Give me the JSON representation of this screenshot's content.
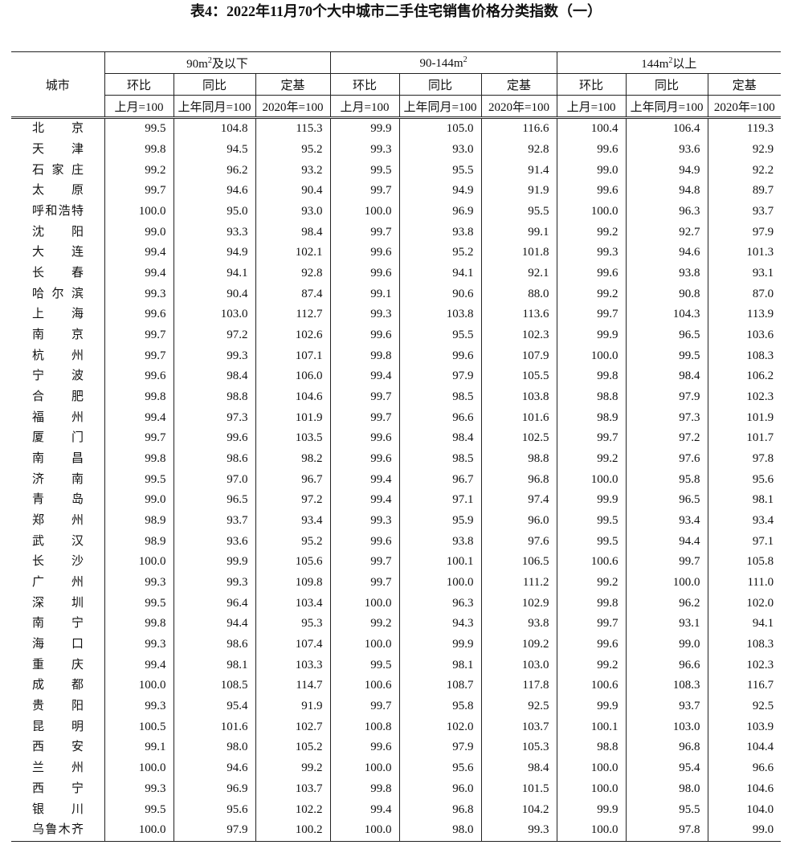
{
  "header": {
    "title": "表4：2022年11月70个大中城市二手住宅销售价格分类指数（一）"
  },
  "table": {
    "city_header": "城市",
    "groups": [
      {
        "label": {
          "pre": "90m",
          "sup": "2",
          "post": "及以下"
        },
        "columns": [
          {
            "name": "环比",
            "base": "上月=100"
          },
          {
            "name": "同比",
            "base": "上年同月=100"
          },
          {
            "name": "定基",
            "base": "2020年=100"
          }
        ]
      },
      {
        "label": {
          "pre": "90-144m",
          "sup": "2"
        },
        "columns": [
          {
            "name": "环比",
            "base": "上月=100"
          },
          {
            "name": "同比",
            "base": "上年同月=100"
          },
          {
            "name": "定基",
            "base": "2020年=100"
          }
        ]
      },
      {
        "label": {
          "pre": "144m",
          "sup": "2",
          "post": "以上"
        },
        "columns": [
          {
            "name": "环比",
            "base": "上月=100"
          },
          {
            "name": "同比",
            "base": "上年同月=100"
          },
          {
            "name": "定基",
            "base": "2020年=100"
          }
        ]
      }
    ],
    "rows": [
      [
        "北京",
        "99.5",
        "104.8",
        "115.3",
        "99.9",
        "105.0",
        "116.6",
        "100.4",
        "106.4",
        "119.3"
      ],
      [
        "天津",
        "99.8",
        "94.5",
        "95.2",
        "99.3",
        "93.0",
        "92.8",
        "99.6",
        "93.6",
        "92.9"
      ],
      [
        "石家庄",
        "99.2",
        "96.2",
        "93.2",
        "99.5",
        "95.5",
        "91.4",
        "99.0",
        "94.9",
        "92.2"
      ],
      [
        "太原",
        "99.7",
        "94.6",
        "90.4",
        "99.7",
        "94.9",
        "91.9",
        "99.6",
        "94.8",
        "89.7"
      ],
      [
        "呼和浩特",
        "100.0",
        "95.0",
        "93.0",
        "100.0",
        "96.9",
        "95.5",
        "100.0",
        "96.3",
        "93.7"
      ],
      [
        "沈阳",
        "99.0",
        "93.3",
        "98.4",
        "99.7",
        "93.8",
        "99.1",
        "99.2",
        "92.7",
        "97.9"
      ],
      [
        "大连",
        "99.4",
        "94.9",
        "102.1",
        "99.6",
        "95.2",
        "101.8",
        "99.3",
        "94.6",
        "101.3"
      ],
      [
        "长春",
        "99.4",
        "94.1",
        "92.8",
        "99.6",
        "94.1",
        "92.1",
        "99.6",
        "93.8",
        "93.1"
      ],
      [
        "哈尔滨",
        "99.3",
        "90.4",
        "87.4",
        "99.1",
        "90.6",
        "88.0",
        "99.2",
        "90.8",
        "87.0"
      ],
      [
        "上海",
        "99.6",
        "103.0",
        "112.7",
        "99.3",
        "103.8",
        "113.6",
        "99.7",
        "104.3",
        "113.9"
      ],
      [
        "南京",
        "99.7",
        "97.2",
        "102.6",
        "99.6",
        "95.5",
        "102.3",
        "99.9",
        "96.5",
        "103.6"
      ],
      [
        "杭州",
        "99.7",
        "99.3",
        "107.1",
        "99.8",
        "99.6",
        "107.9",
        "100.0",
        "99.5",
        "108.3"
      ],
      [
        "宁波",
        "99.6",
        "98.4",
        "106.0",
        "99.4",
        "97.9",
        "105.5",
        "99.8",
        "98.4",
        "106.2"
      ],
      [
        "合肥",
        "99.8",
        "98.8",
        "104.6",
        "99.7",
        "98.5",
        "103.8",
        "98.8",
        "97.9",
        "102.3"
      ],
      [
        "福州",
        "99.4",
        "97.3",
        "101.9",
        "99.7",
        "96.6",
        "101.6",
        "98.9",
        "97.3",
        "101.9"
      ],
      [
        "厦门",
        "99.7",
        "99.6",
        "103.5",
        "99.6",
        "98.4",
        "102.5",
        "99.7",
        "97.2",
        "101.7"
      ],
      [
        "南昌",
        "99.8",
        "98.6",
        "98.2",
        "99.6",
        "98.5",
        "98.8",
        "99.2",
        "97.6",
        "97.8"
      ],
      [
        "济南",
        "99.5",
        "97.0",
        "96.7",
        "99.4",
        "96.7",
        "96.8",
        "100.0",
        "95.8",
        "95.6"
      ],
      [
        "青岛",
        "99.0",
        "96.5",
        "97.2",
        "99.4",
        "97.1",
        "97.4",
        "99.9",
        "96.5",
        "98.1"
      ],
      [
        "郑州",
        "98.9",
        "93.7",
        "93.4",
        "99.3",
        "95.9",
        "96.0",
        "99.5",
        "93.4",
        "93.4"
      ],
      [
        "武汉",
        "98.9",
        "93.6",
        "95.2",
        "99.6",
        "93.8",
        "97.6",
        "99.5",
        "94.4",
        "97.1"
      ],
      [
        "长沙",
        "100.0",
        "99.9",
        "105.6",
        "99.7",
        "100.1",
        "106.5",
        "100.6",
        "99.7",
        "105.8"
      ],
      [
        "广州",
        "99.3",
        "99.3",
        "109.8",
        "99.7",
        "100.0",
        "111.2",
        "99.2",
        "100.0",
        "111.0"
      ],
      [
        "深圳",
        "99.5",
        "96.4",
        "103.4",
        "100.0",
        "96.3",
        "102.9",
        "99.8",
        "96.2",
        "102.0"
      ],
      [
        "南宁",
        "99.8",
        "94.4",
        "95.3",
        "99.2",
        "94.3",
        "93.8",
        "99.7",
        "93.1",
        "94.1"
      ],
      [
        "海口",
        "99.3",
        "98.6",
        "107.4",
        "100.0",
        "99.9",
        "109.2",
        "99.6",
        "99.0",
        "108.3"
      ],
      [
        "重庆",
        "99.4",
        "98.1",
        "103.3",
        "99.5",
        "98.1",
        "103.0",
        "99.2",
        "96.6",
        "102.3"
      ],
      [
        "成都",
        "100.0",
        "108.5",
        "114.7",
        "100.6",
        "108.7",
        "117.8",
        "100.6",
        "108.3",
        "116.7"
      ],
      [
        "贵阳",
        "99.3",
        "95.4",
        "91.9",
        "99.7",
        "95.8",
        "92.5",
        "99.9",
        "93.7",
        "92.5"
      ],
      [
        "昆明",
        "100.5",
        "101.6",
        "102.7",
        "100.8",
        "102.0",
        "103.7",
        "100.1",
        "103.0",
        "103.9"
      ],
      [
        "西安",
        "99.1",
        "98.0",
        "105.2",
        "99.6",
        "97.9",
        "105.3",
        "98.8",
        "96.8",
        "104.4"
      ],
      [
        "兰州",
        "100.0",
        "94.6",
        "99.2",
        "100.0",
        "95.6",
        "98.4",
        "100.0",
        "95.4",
        "96.6"
      ],
      [
        "西宁",
        "99.3",
        "96.9",
        "103.7",
        "99.8",
        "96.0",
        "101.5",
        "100.0",
        "98.0",
        "104.6"
      ],
      [
        "银川",
        "99.5",
        "95.6",
        "102.2",
        "99.4",
        "96.8",
        "104.2",
        "99.9",
        "95.5",
        "104.0"
      ],
      [
        "乌鲁木齐",
        "100.0",
        "97.9",
        "100.2",
        "100.0",
        "98.0",
        "99.3",
        "100.0",
        "97.8",
        "99.0"
      ]
    ]
  }
}
